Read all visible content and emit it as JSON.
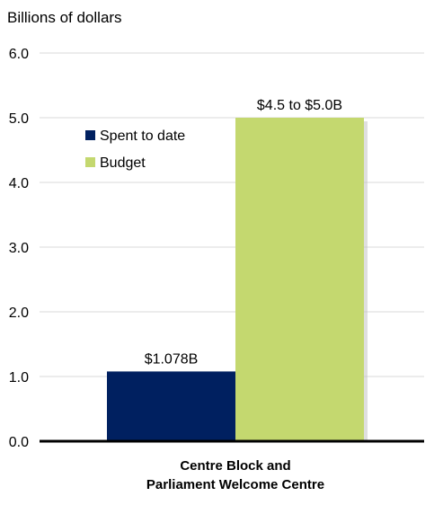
{
  "chart_data": {
    "type": "bar",
    "title": "",
    "ylabel": "Billions of dollars",
    "xlabel": "",
    "ylim": [
      0,
      6
    ],
    "yticks": [
      "0.0",
      "1.0",
      "2.0",
      "3.0",
      "4.0",
      "5.0",
      "6.0"
    ],
    "grid": true,
    "legend_position": "top-left",
    "categories": [
      "Centre Block and",
      "Parliament Welcome Centre"
    ],
    "series": [
      {
        "name": "Spent to date",
        "value": 1.078,
        "label": "$1.078B",
        "color": "#002060"
      },
      {
        "name": "Budget",
        "value": 5.0,
        "label": "$4.5 to $5.0B",
        "color": "#c4d86f"
      }
    ]
  }
}
